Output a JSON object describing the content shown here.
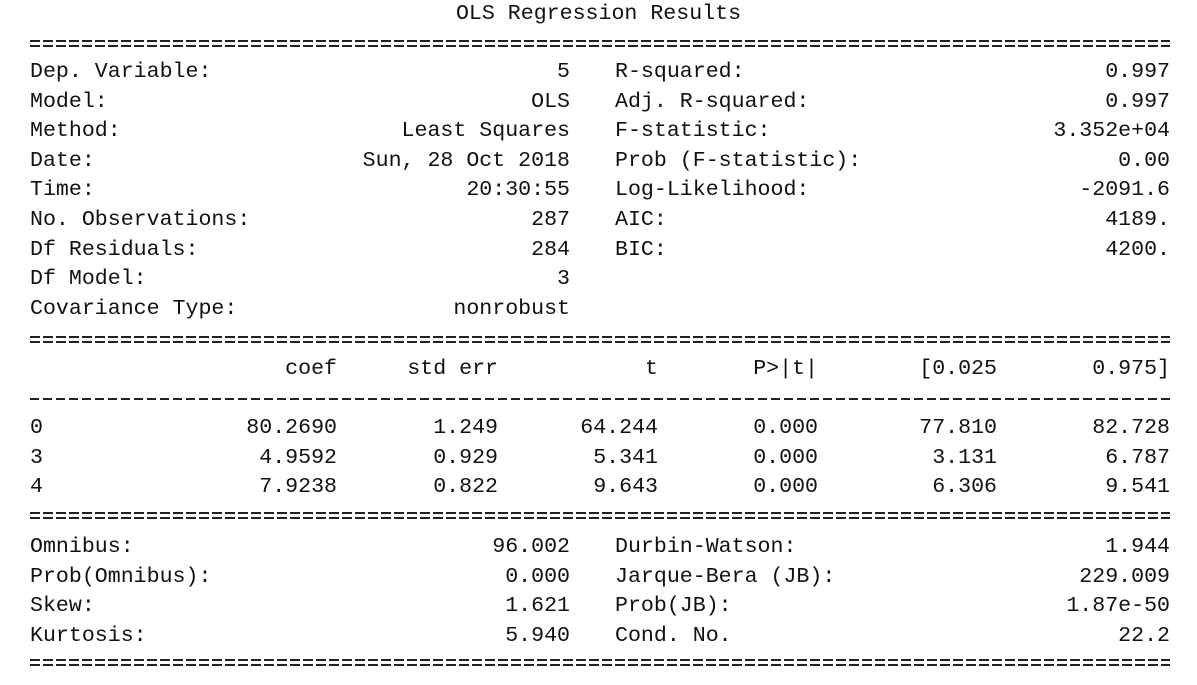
{
  "title": "OLS Regression Results",
  "summary": {
    "left": [
      {
        "label": "Dep. Variable:",
        "value": "5"
      },
      {
        "label": "Model:",
        "value": "OLS"
      },
      {
        "label": "Method:",
        "value": "Least Squares"
      },
      {
        "label": "Date:",
        "value": "Sun, 28 Oct 2018"
      },
      {
        "label": "Time:",
        "value": "20:30:55"
      },
      {
        "label": "No. Observations:",
        "value": "287"
      },
      {
        "label": "Df Residuals:",
        "value": "284"
      },
      {
        "label": "Df Model:",
        "value": "3"
      },
      {
        "label": "Covariance Type:",
        "value": "nonrobust"
      }
    ],
    "right": [
      {
        "label": "R-squared:",
        "value": "0.997"
      },
      {
        "label": "Adj. R-squared:",
        "value": "0.997"
      },
      {
        "label": "F-statistic:",
        "value": "3.352e+04"
      },
      {
        "label": "Prob (F-statistic):",
        "value": "0.00"
      },
      {
        "label": "Log-Likelihood:",
        "value": "-2091.6"
      },
      {
        "label": "AIC:",
        "value": "4189."
      },
      {
        "label": "BIC:",
        "value": "4200."
      }
    ]
  },
  "coef_table": {
    "headers": [
      "coef",
      "std err",
      "t",
      "P>|t|",
      "[0.025",
      "0.975]"
    ],
    "rows": [
      {
        "name": "0",
        "cells": [
          "80.2690",
          "1.249",
          "64.244",
          "0.000",
          "77.810",
          "82.728"
        ]
      },
      {
        "name": "3",
        "cells": [
          "4.9592",
          "0.929",
          "5.341",
          "0.000",
          "3.131",
          "6.787"
        ]
      },
      {
        "name": "4",
        "cells": [
          "7.9238",
          "0.822",
          "9.643",
          "0.000",
          "6.306",
          "9.541"
        ]
      }
    ]
  },
  "diagnostics": {
    "left": [
      {
        "label": "Omnibus:",
        "value": "96.002"
      },
      {
        "label": "Prob(Omnibus):",
        "value": "0.000"
      },
      {
        "label": "Skew:",
        "value": "1.621"
      },
      {
        "label": "Kurtosis:",
        "value": "5.940"
      }
    ],
    "right": [
      {
        "label": "Durbin-Watson:",
        "value": "1.944"
      },
      {
        "label": "Jarque-Bera (JB):",
        "value": "229.009"
      },
      {
        "label": "Prob(JB):",
        "value": "1.87e-50"
      },
      {
        "label": "Cond. No.",
        "value": "22.2"
      }
    ]
  }
}
